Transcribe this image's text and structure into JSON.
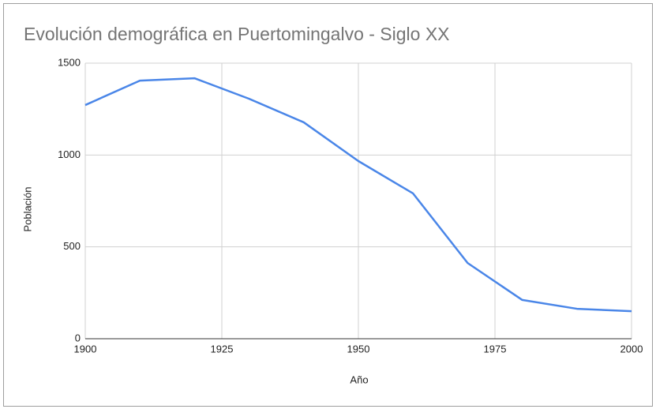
{
  "chart_data": {
    "type": "line",
    "title": "Evolución demográfica en Puertomingalvo - Siglo XX",
    "x_label": "Año",
    "y_label": "Población",
    "x": [
      1900,
      1910,
      1920,
      1930,
      1940,
      1950,
      1960,
      1970,
      1980,
      1990,
      2000
    ],
    "series": [
      {
        "name": "Población",
        "color": "#4a86e8",
        "values": [
          1272,
          1405,
          1418,
          1306,
          1178,
          967,
          791,
          412,
          211,
          163,
          150
        ]
      }
    ],
    "xlim": [
      1900,
      2000
    ],
    "xticks": [
      1900,
      1925,
      1950,
      1975,
      2000
    ],
    "ylim": [
      0,
      1500
    ],
    "yticks": [
      0,
      500,
      1000,
      1500
    ],
    "grid": true
  }
}
